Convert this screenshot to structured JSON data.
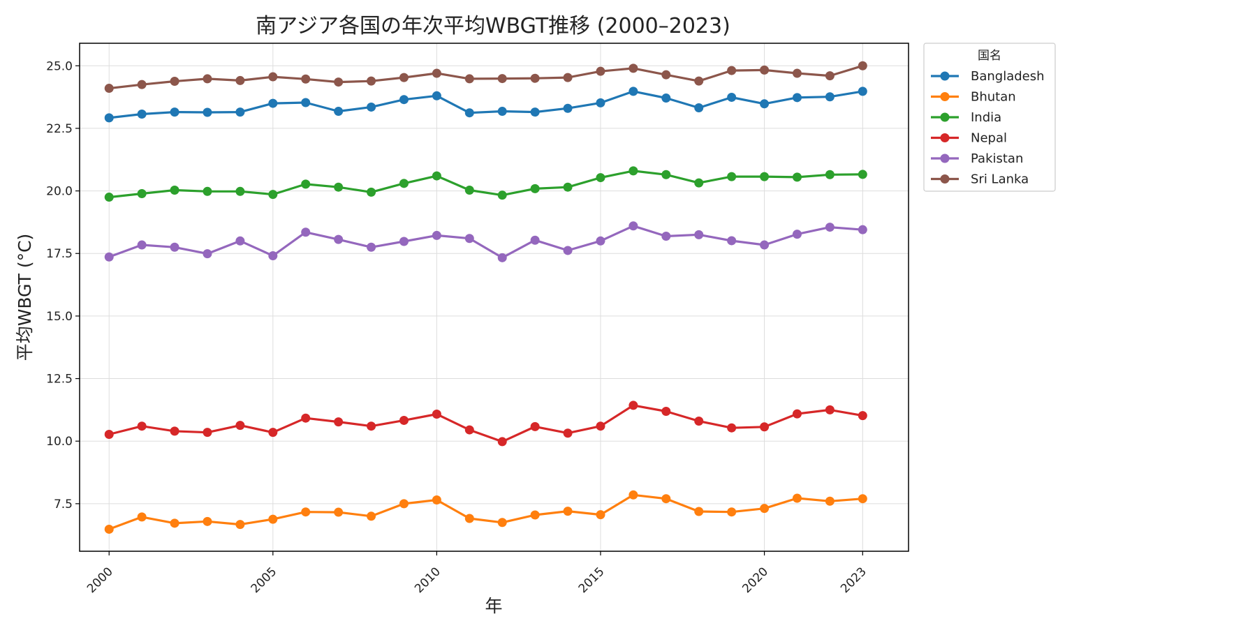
{
  "chart_data": {
    "type": "line",
    "title": "南アジア各国の年次平均WBGT推移 (2000–2023)",
    "xlabel": "年",
    "ylabel": "平均WBGT (°C)",
    "x": [
      2000,
      2001,
      2002,
      2003,
      2004,
      2005,
      2006,
      2007,
      2008,
      2009,
      2010,
      2011,
      2012,
      2013,
      2014,
      2015,
      2016,
      2017,
      2018,
      2019,
      2020,
      2021,
      2022,
      2023
    ],
    "xticks": [
      2000,
      2005,
      2010,
      2015,
      2020,
      2023
    ],
    "xtick_labels": [
      "2000",
      "2005",
      "2010",
      "2015",
      "2020",
      "2023"
    ],
    "xlim": [
      1999.1,
      2024.4
    ],
    "ylim": [
      5.6,
      25.9
    ],
    "yticks": [
      7.5,
      10.0,
      12.5,
      15.0,
      17.5,
      20.0,
      22.5,
      25.0
    ],
    "ytick_labels": [
      "7.5",
      "10.0",
      "12.5",
      "15.0",
      "17.5",
      "20.0",
      "22.5",
      "25.0"
    ],
    "grid": true,
    "legend": {
      "title": "国名",
      "placement": "outside-top-right"
    },
    "series": [
      {
        "name": "Bangladesh",
        "color": "#1f77b4",
        "values": [
          22.92,
          23.07,
          23.15,
          23.14,
          23.15,
          23.5,
          23.53,
          23.18,
          23.35,
          23.65,
          23.8,
          23.12,
          23.18,
          23.15,
          23.3,
          23.52,
          23.98,
          23.71,
          23.32,
          23.74,
          23.48,
          23.73,
          23.76,
          23.98
        ]
      },
      {
        "name": "Bhutan",
        "color": "#ff7f0e",
        "values": [
          6.48,
          6.97,
          6.72,
          6.79,
          6.67,
          6.88,
          7.17,
          7.16,
          7.0,
          7.5,
          7.65,
          6.91,
          6.75,
          7.05,
          7.2,
          7.06,
          7.85,
          7.7,
          7.19,
          7.17,
          7.31,
          7.72,
          7.6,
          7.7
        ]
      },
      {
        "name": "India",
        "color": "#2ca02c",
        "values": [
          19.75,
          19.89,
          20.03,
          19.98,
          19.98,
          19.86,
          20.27,
          20.15,
          19.95,
          20.3,
          20.6,
          20.03,
          19.83,
          20.09,
          20.15,
          20.53,
          20.8,
          20.65,
          20.32,
          20.57,
          20.57,
          20.55,
          20.65,
          20.66
        ]
      },
      {
        "name": "Nepal",
        "color": "#d62728",
        "values": [
          10.27,
          10.6,
          10.4,
          10.35,
          10.63,
          10.35,
          10.92,
          10.77,
          10.6,
          10.83,
          11.08,
          10.45,
          9.98,
          10.58,
          10.32,
          10.6,
          11.43,
          11.19,
          10.8,
          10.53,
          10.57,
          11.09,
          11.25,
          11.02
        ]
      },
      {
        "name": "Pakistan",
        "color": "#9467bd",
        "values": [
          17.36,
          17.84,
          17.75,
          17.49,
          18.0,
          17.41,
          18.35,
          18.06,
          17.75,
          17.98,
          18.22,
          18.1,
          17.33,
          18.03,
          17.62,
          18.0,
          18.6,
          18.19,
          18.25,
          18.01,
          17.84,
          18.27,
          18.55,
          18.45
        ]
      },
      {
        "name": "Sri Lanka",
        "color": "#8c564b",
        "values": [
          24.1,
          24.25,
          24.38,
          24.48,
          24.41,
          24.56,
          24.47,
          24.35,
          24.39,
          24.53,
          24.7,
          24.48,
          24.49,
          24.5,
          24.53,
          24.78,
          24.9,
          24.64,
          24.39,
          24.81,
          24.83,
          24.7,
          24.6,
          25.0
        ]
      }
    ]
  }
}
